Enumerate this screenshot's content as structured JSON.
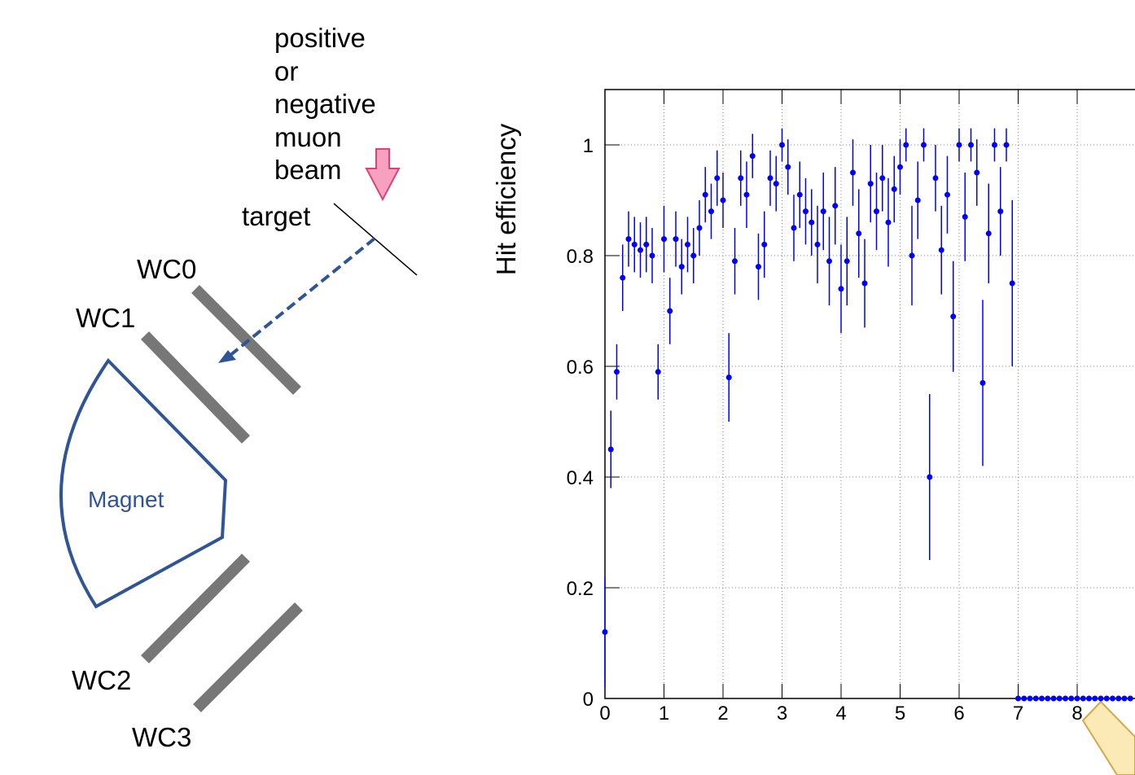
{
  "diagram": {
    "beam_label": [
      "positive",
      "or",
      "negative",
      "muon",
      "beam"
    ],
    "target": "target",
    "detectors": [
      "WC0",
      "WC1",
      "WC2",
      "WC3"
    ],
    "magnet": "Magnet"
  },
  "chart_data": {
    "type": "scatter",
    "y_label": "Hit efficiency",
    "xlim": [
      0,
      9
    ],
    "ylim": [
      0,
      1.1
    ],
    "xticks": [
      0,
      1,
      2,
      3,
      4,
      5,
      6,
      7,
      8
    ],
    "yticks": [
      0,
      0.2,
      0.4,
      0.6,
      0.8,
      1
    ],
    "grid": true,
    "x": [
      0.0,
      0.1,
      0.2,
      0.3,
      0.4,
      0.5,
      0.6,
      0.7,
      0.8,
      0.9,
      1.0,
      1.1,
      1.2,
      1.3,
      1.4,
      1.5,
      1.6,
      1.7,
      1.8,
      1.9,
      2.0,
      2.1,
      2.2,
      2.3,
      2.4,
      2.5,
      2.6,
      2.7,
      2.8,
      2.9,
      3.0,
      3.1,
      3.2,
      3.3,
      3.4,
      3.5,
      3.6,
      3.7,
      3.8,
      3.9,
      4.0,
      4.1,
      4.2,
      4.3,
      4.4,
      4.5,
      4.6,
      4.7,
      4.8,
      4.9,
      5.0,
      5.1,
      5.2,
      5.3,
      5.4,
      5.5,
      5.6,
      5.7,
      5.8,
      5.9,
      6.0,
      6.1,
      6.2,
      6.3,
      6.4,
      6.5,
      6.6,
      6.7,
      6.8,
      6.9,
      7.0,
      7.1,
      7.2,
      7.3,
      7.4,
      7.5,
      7.6,
      7.7,
      7.8,
      7.9,
      8.0,
      8.1,
      8.2,
      8.3,
      8.4,
      8.5,
      8.6,
      8.7,
      8.8,
      8.9
    ],
    "series": [
      {
        "color": "#0000ff",
        "values": [
          0.12,
          0.45,
          0.59,
          0.76,
          0.83,
          0.82,
          0.81,
          0.82,
          0.8,
          0.59,
          0.83,
          0.7,
          0.83,
          0.78,
          0.82,
          0.8,
          0.85,
          0.91,
          0.88,
          0.94,
          0.9,
          0.58,
          0.79,
          0.94,
          0.91,
          0.98,
          0.78,
          0.82,
          0.94,
          0.93,
          1.0,
          0.96,
          0.85,
          0.91,
          0.88,
          0.86,
          0.82,
          0.88,
          0.79,
          0.89,
          0.74,
          0.79,
          0.95,
          0.84,
          0.75,
          0.93,
          0.88,
          0.94,
          0.86,
          0.92,
          0.96,
          1.0,
          0.8,
          0.9,
          1.0,
          0.4,
          0.94,
          0.81,
          0.91,
          0.69,
          1.0,
          0.87,
          1.0,
          0.95,
          0.57,
          0.84,
          1.0,
          0.88,
          1.0,
          0.75,
          0,
          0,
          0,
          0,
          0,
          0,
          0,
          0,
          0,
          0,
          0,
          0,
          0,
          0,
          0,
          0,
          0,
          0,
          0,
          0
        ],
        "errors": [
          0.1,
          0.07,
          0.05,
          0.06,
          0.05,
          0.05,
          0.05,
          0.05,
          0.05,
          0.05,
          0.06,
          0.06,
          0.05,
          0.05,
          0.05,
          0.05,
          0.05,
          0.05,
          0.05,
          0.05,
          0.05,
          0.08,
          0.06,
          0.05,
          0.06,
          0.04,
          0.06,
          0.06,
          0.05,
          0.05,
          0.03,
          0.05,
          0.06,
          0.06,
          0.06,
          0.06,
          0.07,
          0.07,
          0.08,
          0.07,
          0.08,
          0.08,
          0.06,
          0.08,
          0.08,
          0.07,
          0.07,
          0.06,
          0.08,
          0.06,
          0.05,
          0.03,
          0.09,
          0.07,
          0.03,
          0.15,
          0.06,
          0.08,
          0.07,
          0.1,
          0.03,
          0.08,
          0.03,
          0.06,
          0.15,
          0.09,
          0.03,
          0.08,
          0.03,
          0.15,
          0,
          0,
          0,
          0,
          0,
          0,
          0,
          0,
          0,
          0,
          0,
          0,
          0,
          0,
          0,
          0,
          0,
          0,
          0,
          0
        ]
      }
    ]
  }
}
